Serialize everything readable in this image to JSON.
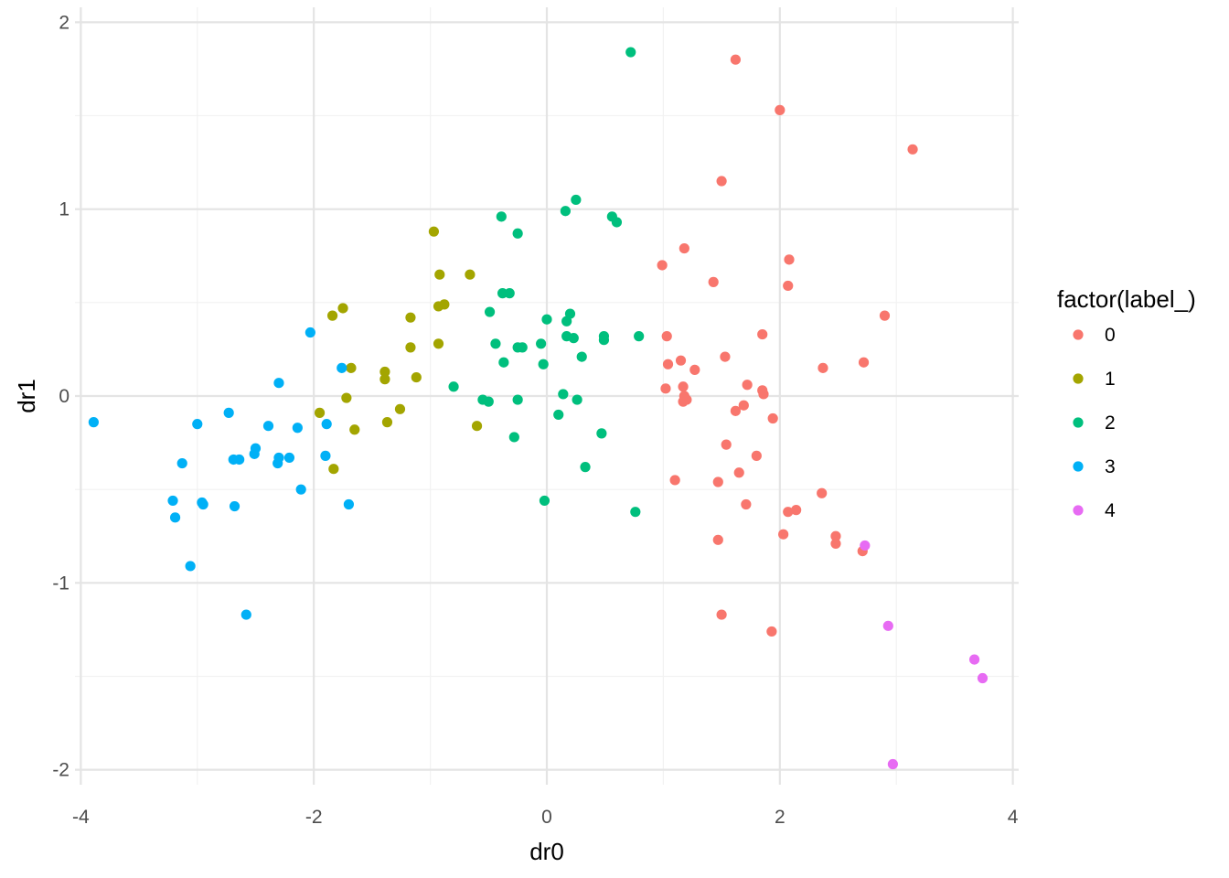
{
  "chart_data": {
    "type": "scatter",
    "title": "",
    "xlabel": "dr0",
    "ylabel": "dr1",
    "xlim": [
      -4.05,
      4.05
    ],
    "ylim": [
      -2.08,
      2.08
    ],
    "x_ticks": [
      -4,
      -2,
      0,
      2,
      4
    ],
    "y_ticks": [
      -2,
      -1,
      0,
      1,
      2
    ],
    "x_tick_labels": [
      "-4",
      "-2",
      "0",
      "2",
      "4"
    ],
    "y_tick_labels": [
      "-2",
      "-1",
      "0",
      "1",
      "2"
    ],
    "grid": true,
    "legend": {
      "title": "factor(label_)",
      "position": "right"
    },
    "series": [
      {
        "name": "0",
        "color": "#F8766D",
        "points": [
          [
            1.62,
            1.8
          ],
          [
            2.0,
            1.53
          ],
          [
            3.14,
            1.32
          ],
          [
            1.5,
            1.15
          ],
          [
            1.18,
            0.79
          ],
          [
            2.08,
            0.73
          ],
          [
            0.99,
            0.7
          ],
          [
            1.43,
            0.61
          ],
          [
            2.07,
            0.59
          ],
          [
            2.9,
            0.43
          ],
          [
            1.85,
            0.33
          ],
          [
            1.03,
            0.32
          ],
          [
            1.53,
            0.21
          ],
          [
            1.15,
            0.19
          ],
          [
            2.72,
            0.18
          ],
          [
            1.27,
            0.14
          ],
          [
            2.37,
            0.15
          ],
          [
            1.04,
            0.17
          ],
          [
            1.72,
            0.06
          ],
          [
            1.02,
            0.04
          ],
          [
            1.17,
            0.05
          ],
          [
            1.85,
            0.03
          ],
          [
            1.86,
            0.01
          ],
          [
            1.18,
            0.0
          ],
          [
            1.2,
            -0.02
          ],
          [
            1.17,
            -0.03
          ],
          [
            1.69,
            -0.05
          ],
          [
            1.62,
            -0.08
          ],
          [
            1.94,
            -0.12
          ],
          [
            1.54,
            -0.26
          ],
          [
            1.8,
            -0.32
          ],
          [
            1.65,
            -0.41
          ],
          [
            1.1,
            -0.45
          ],
          [
            1.47,
            -0.46
          ],
          [
            2.36,
            -0.52
          ],
          [
            1.71,
            -0.58
          ],
          [
            2.07,
            -0.62
          ],
          [
            2.14,
            -0.61
          ],
          [
            2.03,
            -0.74
          ],
          [
            2.48,
            -0.75
          ],
          [
            1.47,
            -0.77
          ],
          [
            2.48,
            -0.79
          ],
          [
            2.71,
            -0.83
          ],
          [
            1.5,
            -1.17
          ],
          [
            1.93,
            -1.26
          ]
        ]
      },
      {
        "name": "1",
        "color": "#A3A500",
        "points": [
          [
            -0.97,
            0.88
          ],
          [
            -0.92,
            0.65
          ],
          [
            -0.66,
            0.65
          ],
          [
            -0.88,
            0.49
          ],
          [
            -0.93,
            0.48
          ],
          [
            -1.75,
            0.47
          ],
          [
            -1.84,
            0.43
          ],
          [
            -1.17,
            0.42
          ],
          [
            -0.93,
            0.28
          ],
          [
            -1.17,
            0.26
          ],
          [
            -1.68,
            0.15
          ],
          [
            -1.39,
            0.13
          ],
          [
            -1.39,
            0.09
          ],
          [
            -1.12,
            0.1
          ],
          [
            -1.72,
            -0.01
          ],
          [
            -1.26,
            -0.07
          ],
          [
            -1.95,
            -0.09
          ],
          [
            -1.37,
            -0.14
          ],
          [
            -0.6,
            -0.16
          ],
          [
            -1.65,
            -0.18
          ],
          [
            -1.83,
            -0.39
          ]
        ]
      },
      {
        "name": "2",
        "color": "#00BF7D",
        "points": [
          [
            0.72,
            1.84
          ],
          [
            0.25,
            1.05
          ],
          [
            0.16,
            0.99
          ],
          [
            -0.39,
            0.96
          ],
          [
            0.56,
            0.96
          ],
          [
            0.6,
            0.93
          ],
          [
            -0.25,
            0.87
          ],
          [
            -0.38,
            0.55
          ],
          [
            -0.32,
            0.55
          ],
          [
            -0.49,
            0.45
          ],
          [
            0.2,
            0.44
          ],
          [
            0.0,
            0.41
          ],
          [
            0.17,
            0.4
          ],
          [
            0.49,
            0.32
          ],
          [
            0.79,
            0.32
          ],
          [
            0.17,
            0.32
          ],
          [
            0.23,
            0.31
          ],
          [
            0.49,
            0.3
          ],
          [
            -0.05,
            0.28
          ],
          [
            -0.44,
            0.28
          ],
          [
            -0.25,
            0.26
          ],
          [
            -0.21,
            0.26
          ],
          [
            0.3,
            0.21
          ],
          [
            -0.37,
            0.18
          ],
          [
            -0.03,
            0.17
          ],
          [
            -0.8,
            0.05
          ],
          [
            0.14,
            0.01
          ],
          [
            -0.55,
            -0.02
          ],
          [
            -0.5,
            -0.03
          ],
          [
            -0.25,
            -0.02
          ],
          [
            0.26,
            -0.02
          ],
          [
            0.1,
            -0.1
          ],
          [
            0.47,
            -0.2
          ],
          [
            -0.28,
            -0.22
          ],
          [
            0.33,
            -0.38
          ],
          [
            -0.02,
            -0.56
          ],
          [
            0.76,
            -0.62
          ]
        ]
      },
      {
        "name": "3",
        "color": "#00B0F6",
        "points": [
          [
            -2.03,
            0.34
          ],
          [
            -1.76,
            0.15
          ],
          [
            -2.3,
            0.07
          ],
          [
            -3.89,
            -0.14
          ],
          [
            -2.73,
            -0.09
          ],
          [
            -3.0,
            -0.15
          ],
          [
            -2.39,
            -0.16
          ],
          [
            -2.14,
            -0.17
          ],
          [
            -1.89,
            -0.15
          ],
          [
            -2.5,
            -0.28
          ],
          [
            -2.51,
            -0.31
          ],
          [
            -1.9,
            -0.32
          ],
          [
            -2.3,
            -0.33
          ],
          [
            -2.21,
            -0.33
          ],
          [
            -2.69,
            -0.34
          ],
          [
            -2.64,
            -0.34
          ],
          [
            -2.31,
            -0.36
          ],
          [
            -3.13,
            -0.36
          ],
          [
            -2.11,
            -0.5
          ],
          [
            -3.21,
            -0.56
          ],
          [
            -2.96,
            -0.57
          ],
          [
            -2.95,
            -0.58
          ],
          [
            -2.68,
            -0.59
          ],
          [
            -1.7,
            -0.58
          ],
          [
            -3.19,
            -0.65
          ],
          [
            -3.06,
            -0.91
          ],
          [
            -2.58,
            -1.17
          ]
        ]
      },
      {
        "name": "4",
        "color": "#E76BF3",
        "points": [
          [
            2.73,
            -0.8
          ],
          [
            2.93,
            -1.23
          ],
          [
            3.67,
            -1.41
          ],
          [
            3.74,
            -1.51
          ],
          [
            2.97,
            -1.97
          ]
        ]
      }
    ]
  }
}
